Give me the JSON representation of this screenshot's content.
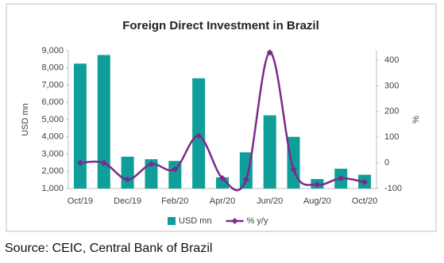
{
  "chart_data": {
    "type": "bar-line",
    "title": "Foreign Direct Investment in Brazil",
    "ylabel": "USD mn",
    "y2label": "%",
    "categories": [
      "Oct/19",
      null,
      "Dec/19",
      null,
      "Feb/20",
      null,
      "Apr/20",
      null,
      "Jun/20",
      null,
      "Aug/20",
      null,
      "Oct/20"
    ],
    "series": [
      {
        "name": "USD mn",
        "type": "bar",
        "color": "#0f9e99",
        "axis": "y",
        "values": [
          8250,
          8750,
          2850,
          2700,
          2600,
          7400,
          1650,
          3100,
          5250,
          4000,
          1550,
          2150,
          1800
        ]
      },
      {
        "name": "% y/y",
        "type": "line",
        "color": "#7b2a8c",
        "axis": "y2",
        "values": [
          0,
          0,
          -65,
          -5,
          -25,
          105,
          -60,
          -65,
          430,
          -25,
          -85,
          -60,
          -75
        ]
      }
    ],
    "ylim": [
      1000,
      9000
    ],
    "yticks": [
      {
        "value": 1000,
        "label": "1,000"
      },
      {
        "value": 2000,
        "label": "2,000"
      },
      {
        "value": 3000,
        "label": "3,000"
      },
      {
        "value": 4000,
        "label": "4,000"
      },
      {
        "value": 5000,
        "label": "5,000"
      },
      {
        "value": 6000,
        "label": "6,000"
      },
      {
        "value": 7000,
        "label": "7,000"
      },
      {
        "value": 8000,
        "label": "8,000"
      },
      {
        "value": 9000,
        "label": "9,000"
      }
    ],
    "y2lim": [
      -100,
      437
    ],
    "y2ticks": [
      -100,
      0,
      100,
      200,
      300,
      400
    ],
    "grid": false,
    "legend": "bottom"
  },
  "source": "Source: CEIC, Central Bank of Brazil"
}
